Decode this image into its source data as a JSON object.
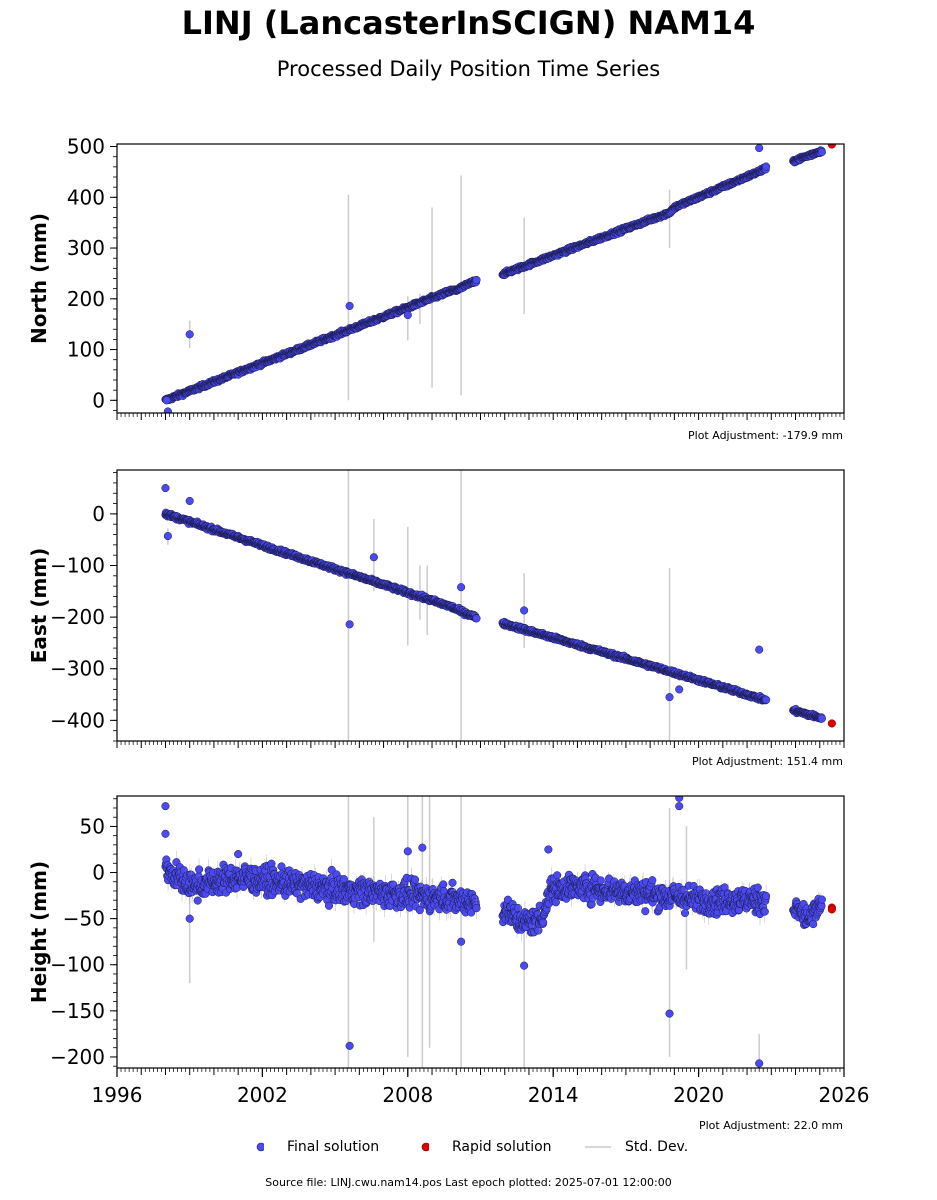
{
  "title": "LINJ (LancasterInSCIGN) NAM14",
  "subtitle": "Processed Daily Position Time Series",
  "footer": "Source file: LINJ.cwu.nam14.pos  Last epoch plotted: 2025-07-01 12:00:00",
  "legend": {
    "final": "Final solution",
    "rapid": "Rapid solution",
    "std": "Std. Dev."
  },
  "colors": {
    "final": "#4a4af0",
    "rapid": "#e00000",
    "std": "#cccccc",
    "edge": "#1a1a4a"
  },
  "chart_data": [
    {
      "type": "scatter",
      "ylabel": "North (mm)",
      "adjustment": "Plot Adjustment: -179.9 mm",
      "xlim": [
        1996,
        2026
      ],
      "ylim": [
        -25,
        505
      ],
      "yticks": [
        0,
        100,
        200,
        300,
        400,
        500
      ],
      "yticklabels": [
        "0",
        "100",
        "200",
        "300",
        "400",
        "500"
      ],
      "xticklabels": [],
      "trend": [
        [
          1998.0,
          0
        ],
        [
          2009.8,
          216
        ],
        [
          2010.0,
          217
        ],
        [
          2010.8,
          236
        ],
        [
          2012.0,
          250
        ],
        [
          2018.8,
          370
        ],
        [
          2019.0,
          380
        ],
        [
          2022.7,
          455
        ],
        [
          2024.0,
          473
        ],
        [
          2025.1,
          492
        ]
      ],
      "gaps": [
        [
          2010.85,
          2011.9
        ],
        [
          2022.8,
          2023.9
        ],
        [
          2025.2,
          2025.9
        ]
      ],
      "scatter": 2.5,
      "final_points": [
        [
          1998.05,
          0
        ],
        [
          1998.1,
          -22
        ],
        [
          1999.0,
          130
        ],
        [
          2005.6,
          186
        ],
        [
          2008.0,
          168
        ],
        [
          2022.5,
          497
        ]
      ],
      "rapid_points": [
        [
          2025.5,
          504
        ]
      ],
      "std_bars": [
        [
          2005.55,
          0,
          405
        ],
        [
          2009.0,
          25,
          380
        ],
        [
          2010.2,
          10,
          443
        ],
        [
          2012.8,
          170,
          360
        ],
        [
          2018.8,
          300,
          415
        ],
        [
          2008.0,
          118,
          205
        ],
        [
          1999.0,
          103,
          157
        ],
        [
          2008.5,
          150,
          210
        ]
      ]
    },
    {
      "type": "scatter",
      "ylabel": "East (mm)",
      "adjustment": "Plot Adjustment: 151.4 mm",
      "xlim": [
        1996,
        2026
      ],
      "ylim": [
        -440,
        85
      ],
      "yticks": [
        0,
        -100,
        -200,
        -300,
        -400
      ],
      "yticklabels": [
        "0",
        "−100",
        "−200",
        "−300",
        "−400"
      ],
      "xticklabels": [],
      "trend": [
        [
          1998.0,
          0
        ],
        [
          2009.8,
          -180
        ],
        [
          2010.0,
          -185
        ],
        [
          2010.8,
          -200
        ],
        [
          2012.0,
          -213
        ],
        [
          2018.8,
          -305
        ],
        [
          2022.7,
          -360
        ],
        [
          2024.0,
          -382
        ],
        [
          2025.1,
          -396
        ]
      ],
      "gaps": [
        [
          2010.85,
          2011.9
        ],
        [
          2022.8,
          2023.9
        ],
        [
          2025.2,
          2025.9
        ]
      ],
      "scatter": 2.5,
      "final_points": [
        [
          1998.0,
          50
        ],
        [
          1998.1,
          -43
        ],
        [
          1999.0,
          25
        ],
        [
          2005.6,
          -214
        ],
        [
          2006.6,
          -84
        ],
        [
          2010.2,
          -142
        ],
        [
          2012.8,
          -187
        ],
        [
          2022.5,
          -263
        ],
        [
          2018.8,
          -355
        ],
        [
          2019.2,
          -340
        ]
      ],
      "rapid_points": [
        [
          2025.5,
          -406
        ]
      ],
      "std_bars": [
        [
          2005.55,
          -440,
          85
        ],
        [
          2010.2,
          -440,
          85
        ],
        [
          2018.8,
          -440,
          -105
        ],
        [
          2012.8,
          -260,
          -115
        ],
        [
          2008.0,
          -255,
          -25
        ],
        [
          2006.6,
          -150,
          -10
        ],
        [
          2008.5,
          -205,
          -100
        ],
        [
          2008.8,
          -235,
          -100
        ],
        [
          1998.1,
          -60,
          -28
        ]
      ]
    },
    {
      "type": "scatter",
      "ylabel": "Height (mm)",
      "adjustment": "Plot Adjustment: 22.0 mm",
      "xlim": [
        1996,
        2026
      ],
      "ylim": [
        -212,
        83
      ],
      "yticks": [
        50,
        0,
        -50,
        -100,
        -150,
        -200
      ],
      "yticklabels": [
        "50",
        "0",
        "−50",
        "−100",
        "−150",
        "−200"
      ],
      "xticklabels": [
        "1996",
        "2002",
        "2008",
        "2014",
        "2020",
        "2026"
      ],
      "xticks": [
        1996,
        2002,
        2008,
        2014,
        2020,
        2026
      ],
      "trend": [
        [
          1998.0,
          5
        ],
        [
          1999.0,
          -15
        ],
        [
          2001.0,
          -5
        ],
        [
          2004.0,
          -15
        ],
        [
          2008.0,
          -25
        ],
        [
          2010.5,
          -30
        ],
        [
          2011.0,
          -35
        ],
        [
          2012.0,
          -40
        ],
        [
          2012.8,
          -55
        ],
        [
          2013.5,
          -50
        ],
        [
          2013.9,
          -20
        ],
        [
          2014.5,
          -15
        ],
        [
          2017.0,
          -20
        ],
        [
          2020.0,
          -30
        ],
        [
          2022.7,
          -30
        ],
        [
          2024.0,
          -40
        ],
        [
          2024.6,
          -50
        ],
        [
          2025.1,
          -35
        ]
      ],
      "gaps": [
        [
          2010.85,
          2011.9
        ],
        [
          2022.8,
          2023.9
        ],
        [
          2025.2,
          2025.9
        ]
      ],
      "scatter": 10,
      "final_points": [
        [
          1998.0,
          72
        ],
        [
          1998.0,
          42
        ],
        [
          1999.0,
          -50
        ],
        [
          2001.0,
          20
        ],
        [
          2005.6,
          -188
        ],
        [
          2008.0,
          23
        ],
        [
          2008.6,
          27
        ],
        [
          2010.2,
          -75
        ],
        [
          2012.8,
          -101
        ],
        [
          2013.8,
          25
        ],
        [
          2018.8,
          -153
        ],
        [
          2019.2,
          81
        ],
        [
          2019.2,
          72
        ],
        [
          2022.5,
          -207
        ]
      ],
      "rapid_points": [
        [
          2025.5,
          -38
        ],
        [
          2025.5,
          -40
        ]
      ],
      "std_bars": [
        [
          2005.55,
          -212,
          83
        ],
        [
          2008.0,
          -200,
          83
        ],
        [
          2008.6,
          -212,
          83
        ],
        [
          2008.9,
          -190,
          83
        ],
        [
          2010.2,
          -212,
          83
        ],
        [
          2012.8,
          -212,
          -50
        ],
        [
          2006.6,
          -75,
          60
        ],
        [
          2018.8,
          -200,
          70
        ],
        [
          2019.5,
          -105,
          50
        ],
        [
          1999.0,
          -120,
          0
        ],
        [
          2022.5,
          -212,
          -175
        ]
      ]
    }
  ]
}
